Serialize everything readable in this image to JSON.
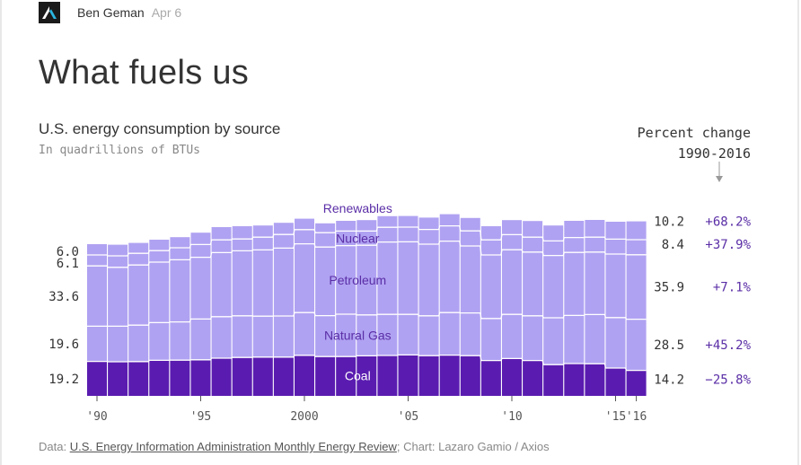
{
  "author": {
    "name": "Ben Geman",
    "date": "Apr 6"
  },
  "headline": "What fuels us",
  "chart_title": "U.S. energy consumption by source",
  "chart_subtitle": "In quadrillions of BTUs",
  "percent_change_header": {
    "line1": "Percent change",
    "line2": "1990-2016"
  },
  "source": {
    "prefix": "Data: ",
    "link_text": "U.S. Energy Information Administration Monthly Energy Review",
    "suffix": "; Chart: Lazaro Gamio / Axios"
  },
  "colors": {
    "coal": "#5a1cb0",
    "natural_gas": "#b0a2f2",
    "petroleum": "#b0a2f2",
    "nuclear": "#b0a2f2",
    "renewables": "#b0a2f2",
    "divider": "#ffffff",
    "label": "#5a2ea6",
    "value_text": "#333333",
    "logo_bg": "#1a1a1a",
    "logo_fg": "#2bb5e0"
  },
  "chart_data": {
    "type": "area",
    "x": [
      1990,
      1991,
      1992,
      1993,
      1994,
      1995,
      1996,
      1997,
      1998,
      1999,
      2000,
      2001,
      2002,
      2003,
      2004,
      2005,
      2006,
      2007,
      2008,
      2009,
      2010,
      2011,
      2012,
      2013,
      2014,
      2015,
      2016
    ],
    "x_tick_labels": [
      "'90",
      "'95",
      "2000",
      "'05",
      "'10",
      "'15",
      "'16"
    ],
    "x_tick_values": [
      1990,
      1995,
      2000,
      2005,
      2010,
      2015,
      2016
    ],
    "series": [
      {
        "name": "Coal",
        "values": [
          19.2,
          19.0,
          19.1,
          19.8,
          19.9,
          20.1,
          21.0,
          21.4,
          21.6,
          21.6,
          22.6,
          21.9,
          21.9,
          22.3,
          22.5,
          22.8,
          22.4,
          22.7,
          22.4,
          19.7,
          20.8,
          19.7,
          17.4,
          18.0,
          17.9,
          15.5,
          14.2
        ],
        "start_label": "19.2",
        "end_label": "14.2",
        "pct_change": "−25.8%"
      },
      {
        "name": "Natural Gas",
        "values": [
          19.6,
          19.8,
          20.3,
          21.0,
          21.3,
          22.7,
          23.1,
          23.2,
          22.8,
          22.9,
          23.8,
          22.8,
          23.6,
          22.8,
          22.9,
          22.6,
          22.2,
          23.7,
          23.8,
          23.4,
          24.6,
          24.9,
          26.1,
          26.8,
          27.4,
          28.1,
          28.5
        ],
        "start_label": "19.6",
        "end_label": "28.5",
        "pct_change": "+45.2%"
      },
      {
        "name": "Petroleum",
        "values": [
          33.6,
          32.8,
          33.5,
          33.7,
          34.6,
          34.4,
          35.7,
          36.2,
          36.9,
          37.8,
          38.3,
          38.2,
          38.2,
          38.8,
          40.3,
          40.4,
          39.9,
          39.8,
          37.3,
          35.4,
          36.0,
          35.5,
          34.7,
          35.1,
          34.8,
          35.4,
          35.9
        ],
        "start_label": "33.6",
        "end_label": "35.9",
        "pct_change": "+7.1%"
      },
      {
        "name": "Nuclear",
        "values": [
          6.1,
          6.4,
          6.5,
          6.4,
          6.7,
          7.1,
          7.1,
          6.6,
          7.1,
          7.6,
          7.9,
          8.0,
          8.1,
          7.9,
          8.2,
          8.2,
          8.2,
          8.5,
          8.4,
          8.4,
          8.4,
          8.3,
          8.1,
          8.3,
          8.3,
          8.3,
          8.4
        ],
        "start_label": "6.1",
        "end_label": "8.4",
        "pct_change": "+37.9%"
      },
      {
        "name": "Renewables",
        "values": [
          6.0,
          6.2,
          5.8,
          6.1,
          5.9,
          6.6,
          7.1,
          7.1,
          6.5,
          6.5,
          6.1,
          5.2,
          5.7,
          6.1,
          6.2,
          6.2,
          6.6,
          6.5,
          7.2,
          7.6,
          8.1,
          9.0,
          8.6,
          9.3,
          9.6,
          9.7,
          10.2
        ],
        "start_label": "6.0",
        "end_label": "10.2",
        "pct_change": "+68.2%"
      }
    ],
    "ylim": [
      0,
      110
    ],
    "grid": false,
    "legend": "inline labels"
  }
}
